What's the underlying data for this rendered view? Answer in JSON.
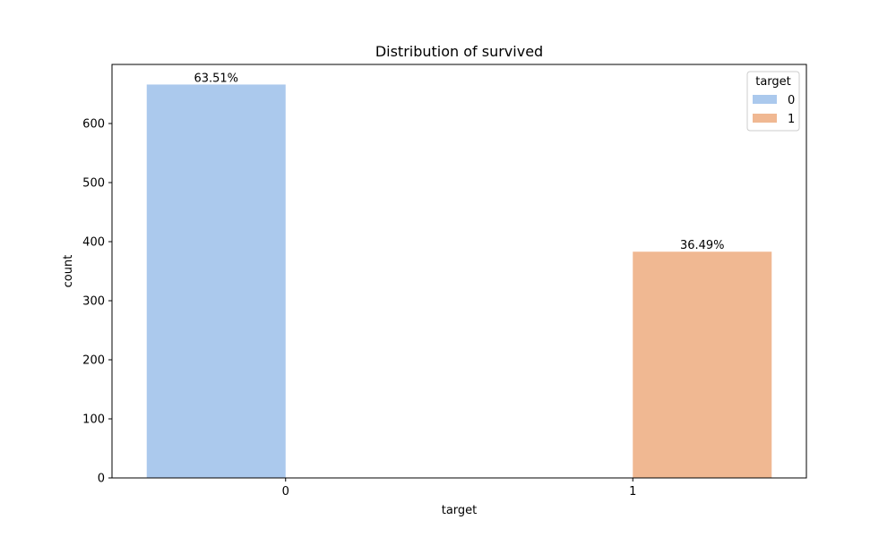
{
  "chart_data": {
    "type": "bar",
    "title": "Distribution of survived",
    "xlabel": "target",
    "ylabel": "count",
    "categories": [
      "0",
      "1"
    ],
    "ylim": [
      0,
      700
    ],
    "yticks": [
      0,
      100,
      200,
      300,
      400,
      500,
      600
    ],
    "series": [
      {
        "name": "0",
        "color": "#abc9ed",
        "values": [
          666,
          0
        ],
        "labels": [
          "63.51%",
          ""
        ]
      },
      {
        "name": "1",
        "color": "#f0b892",
        "values": [
          0,
          383
        ],
        "labels": [
          "",
          "36.49%"
        ]
      }
    ],
    "legend": {
      "title": "target",
      "placement": "top-right"
    },
    "grid": false
  }
}
